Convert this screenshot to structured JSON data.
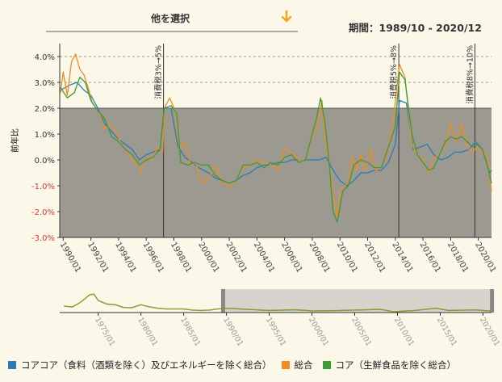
{
  "selector": {
    "label": "他を選択",
    "icon": "chevron-down-icon",
    "accent": "#f5a623"
  },
  "period": {
    "label": "期間：",
    "value": "1989/10 - 2020/12"
  },
  "colors": {
    "core_core": "#2b7bba",
    "overall": "#f28c1e",
    "core": "#3d9b35",
    "plot_bg": "#9c9990",
    "bg": "#fbf8ea",
    "nav_window": "#d6d4cc",
    "negative_tick": "#d23b3b"
  },
  "chart_data": {
    "type": "line",
    "ylabel": "前年比",
    "ylim": [
      -3.0,
      4.5
    ],
    "y_ticks": [
      "4.0%",
      "3.0%",
      "2.0%",
      "1.0%",
      "0.0%",
      "-1.0%",
      "-2.0%",
      "-3.0%"
    ],
    "x_ticks": [
      "1990/01",
      "1992/01",
      "1994/01",
      "1996/01",
      "1998/01",
      "2000/01",
      "2002/01",
      "2004/01",
      "2006/01",
      "2008/01",
      "2010/01",
      "2012/01",
      "2014/01",
      "2016/01",
      "2018/01",
      "2020/01"
    ],
    "target_band": [
      -3.0,
      2.0
    ],
    "grid": "dashed horizontal at 3% and 4%",
    "events": [
      {
        "date": "1997/04",
        "label": "消費税3%→5%"
      },
      {
        "date": "2014/04",
        "label": "消費税5%→8%"
      },
      {
        "date": "2019/10",
        "label": "消費税8%→10%"
      }
    ],
    "series": [
      {
        "name": "コアコア（食料（酒類を除く）及びエネルギーを除く総合）",
        "key": "core_core",
        "points": [
          [
            1989.8,
            2.7
          ],
          [
            1990.5,
            2.9
          ],
          [
            1991.0,
            3.0
          ],
          [
            1991.5,
            2.7
          ],
          [
            1992.0,
            2.5
          ],
          [
            1992.5,
            2.0
          ],
          [
            1993.0,
            1.4
          ],
          [
            1993.5,
            1.1
          ],
          [
            1994.0,
            0.8
          ],
          [
            1994.5,
            0.6
          ],
          [
            1995.0,
            0.4
          ],
          [
            1995.5,
            0.0
          ],
          [
            1996.0,
            0.2
          ],
          [
            1996.5,
            0.3
          ],
          [
            1997.0,
            0.4
          ],
          [
            1997.3,
            2.0
          ],
          [
            1997.8,
            2.0
          ],
          [
            1998.3,
            0.5
          ],
          [
            1998.8,
            0.1
          ],
          [
            1999.3,
            -0.1
          ],
          [
            1999.8,
            -0.3
          ],
          [
            2000.5,
            -0.5
          ],
          [
            2001.0,
            -0.7
          ],
          [
            2001.5,
            -0.8
          ],
          [
            2002.0,
            -0.9
          ],
          [
            2002.5,
            -0.8
          ],
          [
            2003.0,
            -0.6
          ],
          [
            2003.5,
            -0.5
          ],
          [
            2004.0,
            -0.3
          ],
          [
            2004.5,
            -0.2
          ],
          [
            2005.0,
            -0.2
          ],
          [
            2005.5,
            -0.1
          ],
          [
            2006.0,
            -0.1
          ],
          [
            2006.5,
            0.0
          ],
          [
            2007.0,
            0.0
          ],
          [
            2007.5,
            0.0
          ],
          [
            2008.0,
            0.0
          ],
          [
            2008.5,
            0.0
          ],
          [
            2009.0,
            0.1
          ],
          [
            2009.5,
            -0.4
          ],
          [
            2010.0,
            -0.8
          ],
          [
            2010.5,
            -1.0
          ],
          [
            2011.0,
            -0.8
          ],
          [
            2011.5,
            -0.5
          ],
          [
            2012.0,
            -0.5
          ],
          [
            2012.5,
            -0.4
          ],
          [
            2013.0,
            -0.4
          ],
          [
            2013.5,
            -0.1
          ],
          [
            2014.0,
            0.6
          ],
          [
            2014.3,
            2.3
          ],
          [
            2014.8,
            2.2
          ],
          [
            2015.3,
            0.4
          ],
          [
            2015.8,
            0.5
          ],
          [
            2016.3,
            0.6
          ],
          [
            2016.8,
            0.2
          ],
          [
            2017.3,
            0.0
          ],
          [
            2017.8,
            0.1
          ],
          [
            2018.3,
            0.3
          ],
          [
            2018.8,
            0.3
          ],
          [
            2019.3,
            0.4
          ],
          [
            2019.8,
            0.7
          ],
          [
            2020.3,
            0.4
          ],
          [
            2020.8,
            -0.5
          ],
          [
            2020.95,
            -0.4
          ]
        ]
      },
      {
        "name": "総合",
        "key": "overall",
        "points": [
          [
            1989.8,
            2.6
          ],
          [
            1990.0,
            3.4
          ],
          [
            1990.3,
            2.5
          ],
          [
            1990.6,
            3.8
          ],
          [
            1990.9,
            4.1
          ],
          [
            1991.2,
            3.5
          ],
          [
            1991.5,
            3.3
          ],
          [
            1991.8,
            2.8
          ],
          [
            1992.1,
            2.2
          ],
          [
            1992.4,
            2.0
          ],
          [
            1992.7,
            1.7
          ],
          [
            1993.0,
            1.2
          ],
          [
            1993.4,
            1.4
          ],
          [
            1993.8,
            1.1
          ],
          [
            1994.2,
            0.6
          ],
          [
            1994.6,
            0.3
          ],
          [
            1995.0,
            0.0
          ],
          [
            1995.3,
            -0.1
          ],
          [
            1995.6,
            -0.5
          ],
          [
            1996.0,
            0.1
          ],
          [
            1996.4,
            0.0
          ],
          [
            1996.8,
            0.5
          ],
          [
            1997.2,
            0.3
          ],
          [
            1997.3,
            2.0
          ],
          [
            1997.7,
            2.4
          ],
          [
            1998.1,
            1.9
          ],
          [
            1998.4,
            0.4
          ],
          [
            1998.8,
            0.7
          ],
          [
            1999.2,
            -0.2
          ],
          [
            1999.6,
            -0.1
          ],
          [
            2000.0,
            -0.9
          ],
          [
            2000.5,
            -0.7
          ],
          [
            2001.0,
            -0.2
          ],
          [
            2001.5,
            -0.9
          ],
          [
            2002.0,
            -1.0
          ],
          [
            2002.5,
            -0.8
          ],
          [
            2003.0,
            -0.3
          ],
          [
            2003.5,
            -0.2
          ],
          [
            2004.0,
            0.0
          ],
          [
            2004.5,
            -0.1
          ],
          [
            2005.0,
            -0.2
          ],
          [
            2005.5,
            -0.4
          ],
          [
            2006.0,
            0.4
          ],
          [
            2006.5,
            0.3
          ],
          [
            2007.0,
            0.0
          ],
          [
            2007.5,
            0.0
          ],
          [
            2008.0,
            0.9
          ],
          [
            2008.4,
            1.4
          ],
          [
            2008.7,
            2.3
          ],
          [
            2008.9,
            1.0
          ],
          [
            2009.2,
            -0.1
          ],
          [
            2009.5,
            -1.3
          ],
          [
            2009.8,
            -2.2
          ],
          [
            2010.0,
            -1.2
          ],
          [
            2010.3,
            -1.0
          ],
          [
            2010.6,
            -0.9
          ],
          [
            2010.9,
            0.1
          ],
          [
            2011.2,
            -0.4
          ],
          [
            2011.5,
            0.2
          ],
          [
            2011.8,
            -0.4
          ],
          [
            2012.2,
            0.4
          ],
          [
            2012.6,
            -0.4
          ],
          [
            2013.0,
            -0.3
          ],
          [
            2013.4,
            0.2
          ],
          [
            2013.8,
            1.3
          ],
          [
            2014.3,
            3.7
          ],
          [
            2014.7,
            3.2
          ],
          [
            2015.2,
            0.6
          ],
          [
            2015.6,
            0.2
          ],
          [
            2016.0,
            0.0
          ],
          [
            2016.4,
            -0.5
          ],
          [
            2016.8,
            0.1
          ],
          [
            2017.2,
            0.2
          ],
          [
            2017.6,
            0.6
          ],
          [
            2018.0,
            1.4
          ],
          [
            2018.4,
            0.7
          ],
          [
            2018.8,
            1.4
          ],
          [
            2019.2,
            0.5
          ],
          [
            2019.6,
            0.3
          ],
          [
            2019.9,
            0.5
          ],
          [
            2020.3,
            0.3
          ],
          [
            2020.6,
            0.2
          ],
          [
            2020.95,
            -1.2
          ]
        ]
      },
      {
        "name": "コア（生鮮食品を除く総合）",
        "key": "core",
        "points": [
          [
            1989.8,
            2.8
          ],
          [
            1990.3,
            2.4
          ],
          [
            1990.8,
            2.6
          ],
          [
            1991.2,
            3.2
          ],
          [
            1991.6,
            3.0
          ],
          [
            1992.0,
            2.3
          ],
          [
            1992.5,
            1.9
          ],
          [
            1993.0,
            1.6
          ],
          [
            1993.5,
            0.9
          ],
          [
            1994.0,
            0.7
          ],
          [
            1994.5,
            0.4
          ],
          [
            1995.0,
            0.2
          ],
          [
            1995.5,
            -0.2
          ],
          [
            1996.0,
            0.0
          ],
          [
            1996.5,
            0.1
          ],
          [
            1997.0,
            0.4
          ],
          [
            1997.3,
            2.0
          ],
          [
            1997.8,
            2.1
          ],
          [
            1998.2,
            1.8
          ],
          [
            1998.5,
            -0.1
          ],
          [
            1999.0,
            -0.2
          ],
          [
            1999.5,
            -0.1
          ],
          [
            2000.0,
            -0.2
          ],
          [
            2000.5,
            -0.2
          ],
          [
            2001.0,
            -0.6
          ],
          [
            2001.5,
            -0.8
          ],
          [
            2002.0,
            -0.9
          ],
          [
            2002.5,
            -0.8
          ],
          [
            2003.0,
            -0.2
          ],
          [
            2003.5,
            -0.2
          ],
          [
            2004.0,
            -0.1
          ],
          [
            2004.5,
            -0.3
          ],
          [
            2005.0,
            -0.1
          ],
          [
            2005.5,
            -0.2
          ],
          [
            2006.0,
            0.1
          ],
          [
            2006.5,
            0.2
          ],
          [
            2007.0,
            -0.1
          ],
          [
            2007.5,
            0.0
          ],
          [
            2007.9,
            0.8
          ],
          [
            2008.3,
            1.6
          ],
          [
            2008.6,
            2.4
          ],
          [
            2008.9,
            1.5
          ],
          [
            2009.2,
            0.0
          ],
          [
            2009.5,
            -2.0
          ],
          [
            2009.8,
            -2.4
          ],
          [
            2010.2,
            -1.2
          ],
          [
            2010.6,
            -1.0
          ],
          [
            2011.0,
            -0.2
          ],
          [
            2011.5,
            0.0
          ],
          [
            2012.0,
            -0.1
          ],
          [
            2012.5,
            -0.3
          ],
          [
            2013.0,
            -0.3
          ],
          [
            2013.5,
            0.5
          ],
          [
            2014.0,
            1.3
          ],
          [
            2014.3,
            3.4
          ],
          [
            2014.7,
            3.1
          ],
          [
            2015.2,
            1.0
          ],
          [
            2015.6,
            0.2
          ],
          [
            2016.0,
            -0.1
          ],
          [
            2016.4,
            -0.4
          ],
          [
            2016.8,
            -0.3
          ],
          [
            2017.2,
            0.2
          ],
          [
            2017.6,
            0.7
          ],
          [
            2018.0,
            0.9
          ],
          [
            2018.4,
            0.8
          ],
          [
            2018.8,
            0.9
          ],
          [
            2019.2,
            0.7
          ],
          [
            2019.6,
            0.5
          ],
          [
            2019.9,
            0.6
          ],
          [
            2020.3,
            0.4
          ],
          [
            2020.6,
            -0.1
          ],
          [
            2020.95,
            -0.9
          ]
        ]
      }
    ],
    "navigator": {
      "x_ticks": [
        "1975/01",
        "1980/01",
        "1985/01",
        "1990/01",
        "1995/01",
        "2000/01",
        "2005/01",
        "2010/01",
        "2015/01",
        "2020/01"
      ],
      "range_start": "1989/10",
      "range_end": "2020/12",
      "ylim": [
        -3.0,
        30.0
      ],
      "series_points": [
        [
          1971.0,
          6.0
        ],
        [
          1972.0,
          5.0
        ],
        [
          1973.0,
          12.0
        ],
        [
          1974.0,
          22.0
        ],
        [
          1974.5,
          23.0
        ],
        [
          1975.0,
          14.0
        ],
        [
          1976.0,
          9.0
        ],
        [
          1977.0,
          8.0
        ],
        [
          1978.0,
          4.0
        ],
        [
          1979.0,
          4.0
        ],
        [
          1980.0,
          8.0
        ],
        [
          1981.0,
          5.0
        ],
        [
          1982.0,
          3.0
        ],
        [
          1983.0,
          2.0
        ],
        [
          1984.0,
          2.0
        ],
        [
          1985.0,
          2.0
        ],
        [
          1986.0,
          0.5
        ],
        [
          1987.0,
          0.0
        ],
        [
          1988.0,
          0.5
        ],
        [
          1989.0,
          2.0
        ],
        [
          1990.0,
          3.0
        ],
        [
          1992.0,
          1.8
        ],
        [
          1995.0,
          0.0
        ],
        [
          1998.0,
          1.0
        ],
        [
          2000.0,
          -0.6
        ],
        [
          2003.0,
          -0.3
        ],
        [
          2008.0,
          1.5
        ],
        [
          2009.5,
          -2.0
        ],
        [
          2012.0,
          0.0
        ],
        [
          2014.5,
          3.0
        ],
        [
          2016.0,
          0.0
        ],
        [
          2019.0,
          0.7
        ],
        [
          2020.9,
          -0.8
        ]
      ]
    }
  },
  "legend": [
    {
      "label": "コアコア（食料（酒類を除く）及びエネルギーを除く総合）",
      "key": "core_core"
    },
    {
      "label": "総合",
      "key": "overall"
    },
    {
      "label": "コア（生鮮食品を除く総合）",
      "key": "core"
    }
  ]
}
